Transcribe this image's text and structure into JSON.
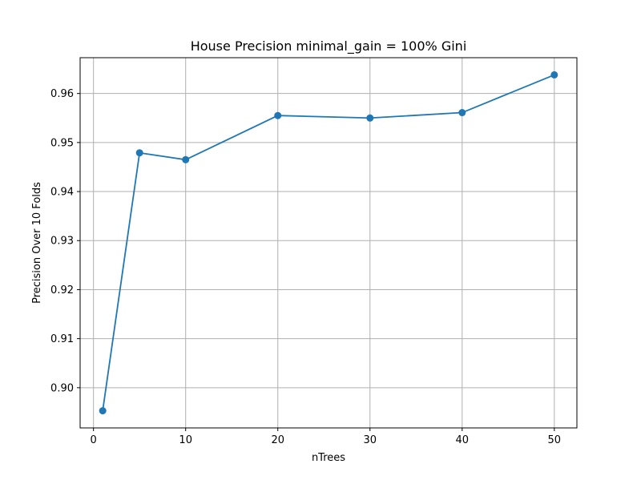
{
  "chart_data": {
    "type": "line",
    "title": "House Precision minimal_gain = 100% Gini",
    "xlabel": "nTrees",
    "ylabel": "Precision Over 10 Folds",
    "xlim": [
      -1.45,
      52.45
    ],
    "ylim": [
      0.8918,
      0.9673
    ],
    "x_ticks": [
      0,
      10,
      20,
      30,
      40,
      50
    ],
    "y_ticks": [
      0.9,
      0.91,
      0.92,
      0.93,
      0.94,
      0.95,
      0.96
    ],
    "x_tick_labels": [
      "0",
      "10",
      "20",
      "30",
      "40",
      "50"
    ],
    "y_tick_labels": [
      "0.90",
      "0.91",
      "0.92",
      "0.93",
      "0.94",
      "0.95",
      "0.96"
    ],
    "grid": true,
    "series": [
      {
        "color": "#1f77b4",
        "marker": "circle",
        "x": [
          1,
          5,
          10,
          20,
          30,
          40,
          50
        ],
        "y": [
          0.8953,
          0.9479,
          0.9465,
          0.9555,
          0.955,
          0.9561,
          0.9638
        ]
      }
    ]
  }
}
